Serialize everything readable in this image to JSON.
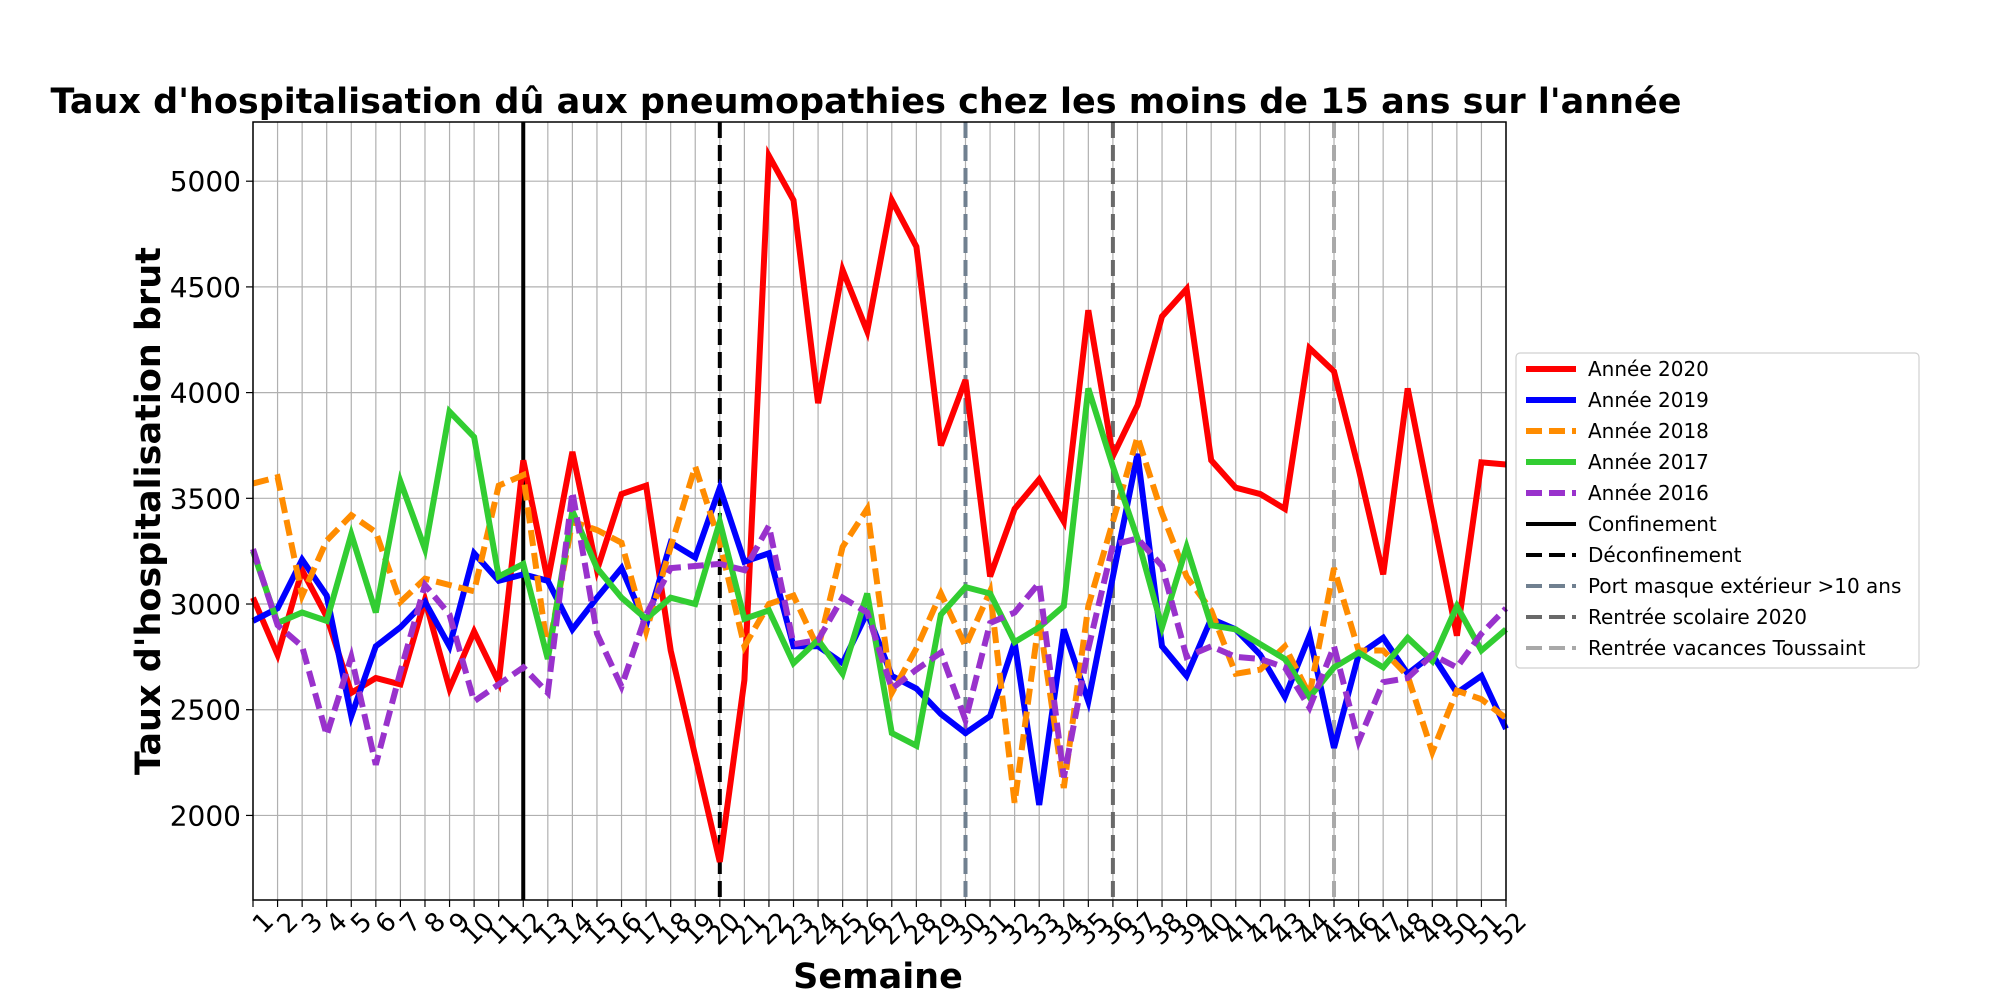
{
  "chart_data": {
    "type": "line",
    "title": "Taux d'hospitalisation dû aux pneumopathies chez les moins de 15 ans sur l'année",
    "xlabel": "Semaine",
    "ylabel": "Taux d'hospitalisation brut",
    "x": [
      1,
      2,
      3,
      4,
      5,
      6,
      7,
      8,
      9,
      10,
      11,
      12,
      13,
      14,
      15,
      16,
      17,
      18,
      19,
      20,
      21,
      22,
      23,
      24,
      25,
      26,
      27,
      28,
      29,
      30,
      31,
      32,
      33,
      34,
      35,
      36,
      37,
      38,
      39,
      40,
      41,
      42,
      43,
      44,
      45,
      46,
      47,
      48,
      49,
      50,
      51,
      52
    ],
    "x_tick_labels": [
      "1",
      "2",
      "3",
      "4",
      "5",
      "6",
      "7",
      "8",
      "9",
      "10",
      "11",
      "12",
      "13",
      "14",
      "15",
      "16",
      "17",
      "18",
      "19",
      "20",
      "21",
      "22",
      "23",
      "24",
      "25",
      "26",
      "27",
      "28",
      "29",
      "30",
      "31",
      "32",
      "33",
      "34",
      "35",
      "36",
      "37",
      "38",
      "39",
      "40",
      "41",
      "42",
      "43",
      "44",
      "45",
      "46",
      "47",
      "48",
      "49",
      "50",
      "51",
      "52"
    ],
    "xlim": [
      1,
      52
    ],
    "ylim": [
      1600,
      5280
    ],
    "y_ticks": [
      2000,
      2500,
      3000,
      3500,
      4000,
      4500,
      5000
    ],
    "y_tick_labels": [
      "2000",
      "2500",
      "3000",
      "3500",
      "4000",
      "4500",
      "5000"
    ],
    "grid": true,
    "legend_position": "right",
    "series": [
      {
        "name": "Année 2020",
        "color": "#ff0000",
        "dash": "solid",
        "values": [
          3030,
          2760,
          3160,
          2940,
          2580,
          2650,
          2620,
          3020,
          2600,
          2870,
          2630,
          3680,
          3110,
          3720,
          3160,
          3520,
          3560,
          2780,
          2280,
          1780,
          2640,
          5120,
          4910,
          3950,
          4580,
          4290,
          4910,
          4690,
          3750,
          4060,
          3130,
          3450,
          3590,
          3390,
          4390,
          3700,
          3940,
          4360,
          4490,
          3680,
          3550,
          3520,
          3450,
          4210,
          4100,
          3640,
          3140,
          4020,
          3430,
          2850,
          3670,
          3660
        ]
      },
      {
        "name": "Année 2019",
        "color": "#0000ff",
        "dash": "solid",
        "values": [
          2920,
          2980,
          3210,
          3040,
          2470,
          2800,
          2890,
          3010,
          2800,
          3240,
          3110,
          3140,
          3110,
          2880,
          3030,
          3170,
          2900,
          3290,
          3220,
          3550,
          3200,
          3240,
          2800,
          2800,
          2720,
          2960,
          2660,
          2600,
          2480,
          2390,
          2470,
          2820,
          2050,
          2880,
          2540,
          3130,
          3710,
          2800,
          2660,
          2930,
          2880,
          2760,
          2560,
          2850,
          2320,
          2760,
          2840,
          2670,
          2760,
          2580,
          2660,
          2410
        ]
      },
      {
        "name": "Année 2018",
        "color": "#ff8c00",
        "dash": "dashed",
        "values": [
          3570,
          3600,
          3040,
          3300,
          3420,
          3340,
          3010,
          3120,
          3090,
          3060,
          3560,
          3610,
          2770,
          3390,
          3350,
          3290,
          2870,
          3270,
          3650,
          3290,
          2800,
          3000,
          3040,
          2790,
          3270,
          3450,
          2580,
          2790,
          3050,
          2800,
          3060,
          2060,
          2930,
          2130,
          2990,
          3390,
          3790,
          3430,
          3130,
          2970,
          2670,
          2690,
          2800,
          2570,
          3170,
          2780,
          2780,
          2660,
          2300,
          2590,
          2550,
          2460
        ]
      },
      {
        "name": "Année 2017",
        "color": "#32cd32",
        "dash": "solid",
        "values": [
          3250,
          2910,
          2960,
          2920,
          3330,
          2960,
          3580,
          3260,
          3910,
          3790,
          3130,
          3190,
          2740,
          3440,
          3170,
          3030,
          2930,
          3030,
          3000,
          3390,
          2930,
          2970,
          2720,
          2830,
          2670,
          3050,
          2390,
          2330,
          2950,
          3080,
          3050,
          2820,
          2890,
          2990,
          4020,
          3650,
          3310,
          2890,
          3270,
          2900,
          2880,
          2810,
          2740,
          2560,
          2700,
          2770,
          2700,
          2840,
          2730,
          2990,
          2780,
          2880
        ]
      },
      {
        "name": "Année 2016",
        "color": "#9932cc",
        "dash": "dashed",
        "values": [
          3260,
          2900,
          2800,
          2380,
          2750,
          2240,
          2680,
          3090,
          2950,
          2540,
          2620,
          2700,
          2580,
          3530,
          2860,
          2610,
          2950,
          3170,
          3180,
          3190,
          3160,
          3370,
          2810,
          2830,
          3030,
          2960,
          2600,
          2690,
          2770,
          2450,
          2910,
          2960,
          3100,
          2180,
          2790,
          3280,
          3310,
          3180,
          2750,
          2800,
          2750,
          2740,
          2700,
          2510,
          2800,
          2350,
          2630,
          2650,
          2760,
          2700,
          2860,
          2980
        ]
      }
    ],
    "vertical_lines": [
      {
        "name": "Confinement",
        "x": 12,
        "color": "#000000",
        "dash": "solid"
      },
      {
        "name": "Déconfinement",
        "x": 20,
        "color": "#000000",
        "dash": "dashed"
      },
      {
        "name": "Port masque extérieur >10 ans",
        "x": 30,
        "color": "#708090",
        "dash": "dashed"
      },
      {
        "name": "Rentrée scolaire 2020",
        "x": 36,
        "color": "#696969",
        "dash": "dashed"
      },
      {
        "name": "Rentrée vacances Toussaint",
        "x": 45,
        "color": "#a9a9a9",
        "dash": "dashed"
      }
    ]
  }
}
